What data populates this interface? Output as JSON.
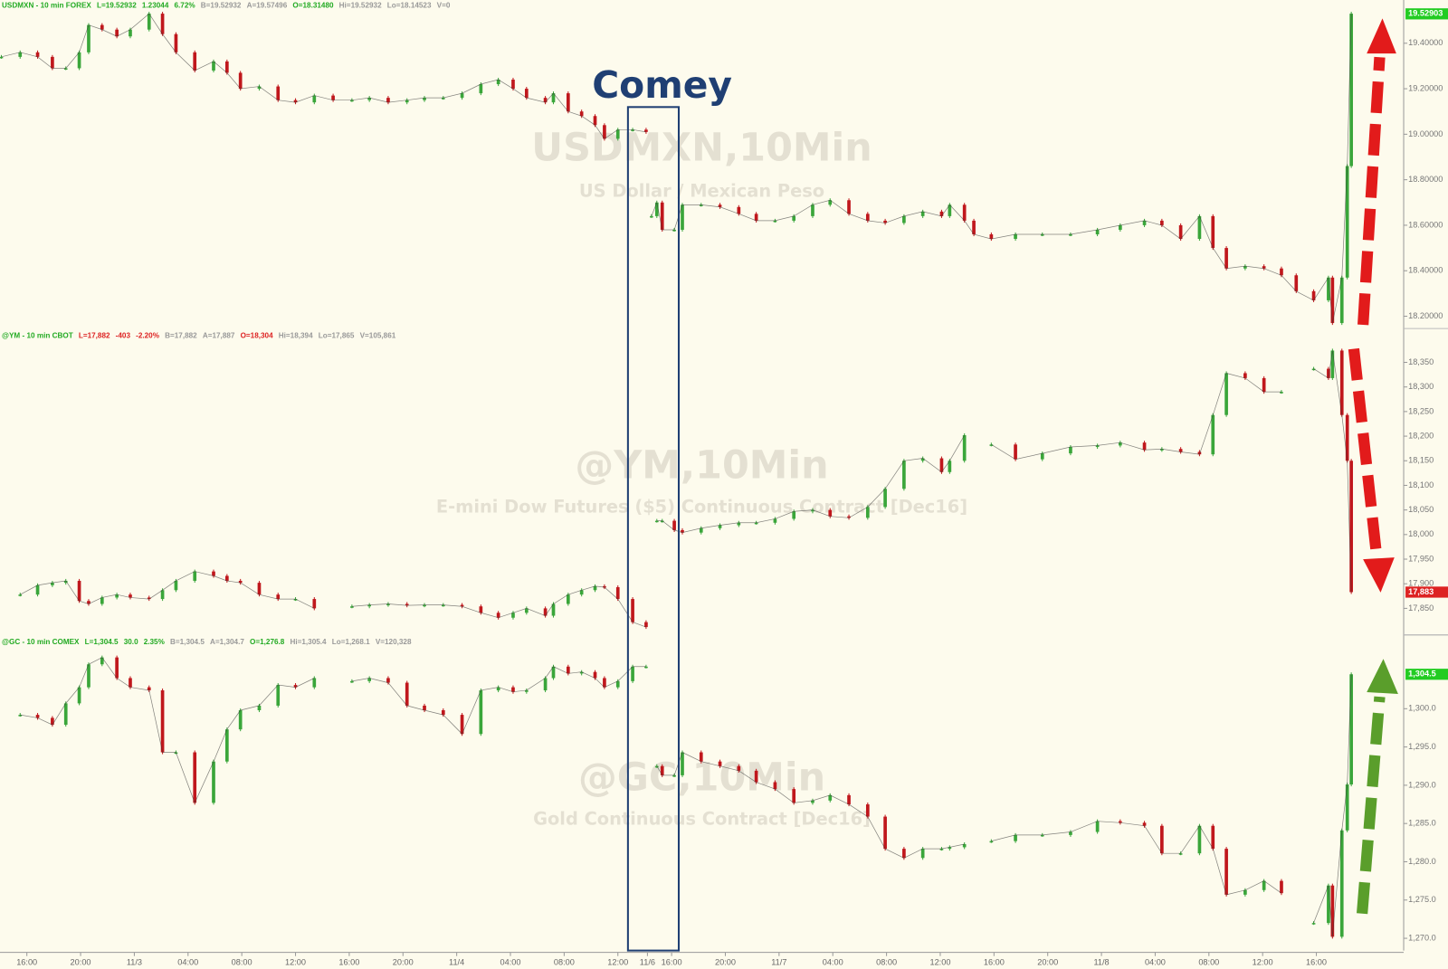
{
  "annotation": "Comey",
  "chart_data": [
    {
      "type": "line",
      "header": [
        {
          "text": "USDMXN - 10 min  FOREX",
          "color": "#22aa22"
        },
        {
          "text": "L=19.52932",
          "color": "#22aa22"
        },
        {
          "text": "1.23044",
          "color": "#22aa22"
        },
        {
          "text": "6.72%",
          "color": "#22aa22"
        },
        {
          "text": "B=19.52932",
          "color": "#999999"
        },
        {
          "text": "A=19.57496",
          "color": "#999999"
        },
        {
          "text": "O=18.31480",
          "color": "#22aa22"
        },
        {
          "text": "Hi=19.52932",
          "color": "#999999"
        },
        {
          "text": "Lo=18.14523",
          "color": "#999999"
        },
        {
          "text": "V=0",
          "color": "#999999"
        }
      ],
      "watermark_title": "USDMXN,10Min",
      "watermark_subtitle": "US Dollar / Mexican Peso",
      "up_color": "#3aa63a",
      "down_color": "#c0171c",
      "xlim": [
        -2,
        102.5
      ],
      "ylim": [
        18.15,
        19.59
      ],
      "yticks": [
        {
          "value": 19.4,
          "label": "19.40000"
        },
        {
          "value": 19.2,
          "label": "19.20000"
        },
        {
          "value": 19.0,
          "label": "19.00000"
        },
        {
          "value": 18.8,
          "label": "18.80000"
        },
        {
          "value": 18.6,
          "label": "18.60000"
        },
        {
          "value": 18.4,
          "label": "18.40000"
        },
        {
          "value": 18.2,
          "label": "18.20000"
        }
      ],
      "last_price": 19.52903,
      "last_price_color": "#22cc22",
      "x": [
        -1.9,
        -0.5,
        0.8,
        1.9,
        2.9,
        3.9,
        4.6,
        5.6,
        6.7,
        7.7,
        9.1,
        10.1,
        11.1,
        12.5,
        13.9,
        14.9,
        15.9,
        17.3,
        18.7,
        20.0,
        21.4,
        22.8,
        24.2,
        25.5,
        26.9,
        28.3,
        29.6,
        31.0,
        32.4,
        33.8,
        35.1,
        36.2,
        37.2,
        38.6,
        39.2,
        40.3,
        41.3,
        42.3,
        43.0,
        44.0,
        45.1,
        46.1,
        46.3,
        46.5,
        46.9,
        47.3,
        48.2,
        48.8,
        50.2,
        51.6,
        53.0,
        54.3,
        55.7,
        57.1,
        58.5,
        59.8,
        61.2,
        62.6,
        63.9,
        65.3,
        66.7,
        68.1,
        68.7,
        69.8,
        70.5,
        71.8,
        73.6,
        75.6,
        77.7,
        79.7,
        81.4,
        83.2,
        84.5,
        85.9,
        87.3,
        88.3,
        89.3,
        90.7,
        92.1,
        93.4,
        94.5,
        95.8,
        96.9,
        97.2,
        97.9,
        98.3,
        98.6
      ],
      "values": [
        19.34,
        19.36,
        19.34,
        19.29,
        19.29,
        19.36,
        19.48,
        19.46,
        19.43,
        19.46,
        19.53,
        19.44,
        19.36,
        19.28,
        19.32,
        19.27,
        19.2,
        19.21,
        19.15,
        19.14,
        19.17,
        19.15,
        19.15,
        19.16,
        19.14,
        19.15,
        19.16,
        19.16,
        19.18,
        19.22,
        19.24,
        19.2,
        19.16,
        19.14,
        19.18,
        19.1,
        19.08,
        19.04,
        18.98,
        19.02,
        19.02,
        19.01,
        null,
        18.64,
        18.7,
        18.58,
        18.58,
        18.69,
        18.69,
        18.68,
        18.65,
        18.62,
        18.62,
        18.64,
        18.69,
        18.71,
        18.65,
        18.62,
        18.61,
        18.64,
        18.66,
        18.64,
        18.69,
        18.62,
        18.56,
        18.54,
        18.56,
        18.56,
        18.56,
        18.58,
        18.6,
        18.62,
        18.6,
        18.54,
        18.64,
        18.5,
        18.41,
        18.42,
        18.41,
        18.38,
        18.31,
        18.27,
        18.37,
        18.17,
        18.37,
        18.86,
        19.53
      ]
    },
    {
      "type": "line",
      "header": [
        {
          "text": "@YM - 10 min  CBOT",
          "color": "#22aa22"
        },
        {
          "text": "L=17,882",
          "color": "#dd2222"
        },
        {
          "text": "-403",
          "color": "#dd2222"
        },
        {
          "text": "-2.20%",
          "color": "#dd2222"
        },
        {
          "text": "B=17,882",
          "color": "#999999"
        },
        {
          "text": "A=17,887",
          "color": "#999999"
        },
        {
          "text": "O=18,304",
          "color": "#dd2222"
        },
        {
          "text": "Hi=18,394",
          "color": "#999999"
        },
        {
          "text": "Lo=17,865",
          "color": "#999999"
        },
        {
          "text": "V=105,861",
          "color": "#999999"
        }
      ],
      "watermark_title": "@YM,10Min",
      "watermark_subtitle": "E-mini Dow Futures ($5) Continuous Contract [Dec16]",
      "up_color": "#3aa63a",
      "down_color": "#c0171c",
      "xlim": [
        -2,
        102.5
      ],
      "ylim": [
        17796,
        18415
      ],
      "yticks": [
        {
          "value": 18350,
          "label": "18,350"
        },
        {
          "value": 18300,
          "label": "18,300"
        },
        {
          "value": 18250,
          "label": "18,250"
        },
        {
          "value": 18200,
          "label": "18,200"
        },
        {
          "value": 18150,
          "label": "18,150"
        },
        {
          "value": 18100,
          "label": "18,100"
        },
        {
          "value": 18050,
          "label": "18,050"
        },
        {
          "value": 18000,
          "label": "18,000"
        },
        {
          "value": 17950,
          "label": "17,950"
        },
        {
          "value": 17900,
          "label": "17,900"
        },
        {
          "value": 17850,
          "label": "17,850"
        }
      ],
      "last_price": {
        "value": 17883,
        "label": "17,883"
      },
      "last_price_color": "#dd2222",
      "x": [
        -1.9,
        -0.5,
        0.8,
        1.9,
        2.9,
        3.9,
        4.6,
        5.6,
        6.7,
        7.7,
        9.1,
        10.1,
        11.1,
        12.5,
        13.9,
        14.9,
        15.9,
        17.3,
        18.7,
        20.0,
        21.4,
        22.8,
        24.2,
        25.5,
        26.9,
        28.3,
        29.6,
        31.0,
        32.4,
        33.8,
        35.1,
        36.2,
        37.2,
        38.6,
        39.2,
        40.3,
        41.3,
        42.3,
        43.0,
        44.0,
        45.1,
        46.1,
        46.3,
        46.5,
        46.9,
        47.3,
        48.2,
        48.8,
        50.2,
        51.6,
        53.0,
        54.3,
        55.7,
        57.1,
        58.5,
        59.8,
        61.2,
        62.6,
        63.9,
        65.3,
        66.7,
        68.1,
        68.7,
        69.8,
        70.5,
        71.8,
        73.6,
        75.6,
        77.7,
        79.7,
        81.4,
        83.2,
        84.5,
        85.9,
        87.3,
        88.3,
        89.3,
        90.7,
        92.1,
        93.4,
        94.5,
        95.8,
        96.9,
        97.2,
        97.9,
        98.3,
        98.6
      ],
      "values": [
        null,
        17878,
        17897,
        17902,
        17906,
        17865,
        17859,
        17872,
        17878,
        17872,
        17869,
        17887,
        17906,
        17925,
        17916,
        17906,
        17902,
        17878,
        17869,
        17869,
        17850,
        null,
        17854,
        17857,
        17859,
        17856,
        17857,
        17857,
        17854,
        17841,
        17831,
        17841,
        17850,
        17835,
        17859,
        17878,
        17887,
        17895,
        17893,
        17869,
        17822,
        17812,
        null,
        null,
        18028,
        18028,
        18009,
        18004,
        18013,
        18019,
        18024,
        18024,
        18032,
        18047,
        18050,
        18037,
        18034,
        18056,
        18093,
        18150,
        18155,
        18127,
        18150,
        18202,
        null,
        18183,
        18153,
        18165,
        18178,
        18181,
        18187,
        18172,
        18174,
        18168,
        18163,
        18243,
        18328,
        18318,
        18290,
        18290,
        null,
        18337,
        18318,
        18374,
        18243,
        18150,
        17883
      ]
    },
    {
      "type": "line",
      "header": [
        {
          "text": "@GC - 10 min  COMEX",
          "color": "#22aa22"
        },
        {
          "text": "L=1,304.5",
          "color": "#22aa22"
        },
        {
          "text": "30.0",
          "color": "#22aa22"
        },
        {
          "text": "2.35%",
          "color": "#22aa22"
        },
        {
          "text": "B=1,304.5",
          "color": "#999999"
        },
        {
          "text": "A=1,304.7",
          "color": "#999999"
        },
        {
          "text": "O=1,276.8",
          "color": "#22aa22"
        },
        {
          "text": "Hi=1,305.4",
          "color": "#999999"
        },
        {
          "text": "Lo=1,268.1",
          "color": "#999999"
        },
        {
          "text": "V=120,328",
          "color": "#999999"
        }
      ],
      "watermark_title": "@GC,10Min",
      "watermark_subtitle": "Gold Continuous Contract [Dec16]",
      "up_color": "#3aa63a",
      "down_color": "#c0171c",
      "xlim": [
        -2,
        102.5
      ],
      "ylim": [
        1268.4,
        1309.4
      ],
      "yticks": [
        {
          "value": 1300,
          "label": "1,300.0"
        },
        {
          "value": 1295,
          "label": "1,295.0"
        },
        {
          "value": 1290,
          "label": "1,290.0"
        },
        {
          "value": 1285,
          "label": "1,285.0"
        },
        {
          "value": 1280,
          "label": "1,280.0"
        },
        {
          "value": 1275,
          "label": "1,275.0"
        },
        {
          "value": 1270,
          "label": "1,270.0"
        }
      ],
      "last_price": {
        "value": 1304.5,
        "label": "1,304.5"
      },
      "last_price_color": "#22cc22",
      "xticks": [
        {
          "value": 0,
          "label": "16:00"
        },
        {
          "value": 4,
          "label": "20:00"
        },
        {
          "value": 8,
          "label": "11/3"
        },
        {
          "value": 12,
          "label": "04:00"
        },
        {
          "value": 16,
          "label": "08:00"
        },
        {
          "value": 20,
          "label": "12:00"
        },
        {
          "value": 24,
          "label": "16:00"
        },
        {
          "value": 28,
          "label": "20:00"
        },
        {
          "value": 32,
          "label": "11/4"
        },
        {
          "value": 36,
          "label": "04:00"
        },
        {
          "value": 40,
          "label": "08:00"
        },
        {
          "value": 44,
          "label": "12:00"
        },
        {
          "value": 46.2,
          "label": "11/6"
        },
        {
          "value": 48,
          "label": "16:00"
        },
        {
          "value": 52,
          "label": "20:00"
        },
        {
          "value": 56,
          "label": "11/7"
        },
        {
          "value": 60,
          "label": "04:00"
        },
        {
          "value": 64,
          "label": "08:00"
        },
        {
          "value": 68,
          "label": "12:00"
        },
        {
          "value": 72,
          "label": "16:00"
        },
        {
          "value": 76,
          "label": "20:00"
        },
        {
          "value": 80,
          "label": "11/8"
        },
        {
          "value": 84,
          "label": "04:00"
        },
        {
          "value": 88,
          "label": "08:00"
        },
        {
          "value": 92,
          "label": "12:00"
        },
        {
          "value": 96,
          "label": "16:00"
        }
      ],
      "x": [
        -1.9,
        -0.5,
        0.8,
        1.9,
        2.9,
        3.9,
        4.6,
        5.6,
        6.7,
        7.7,
        9.1,
        10.1,
        11.1,
        12.5,
        13.9,
        14.9,
        15.9,
        17.3,
        18.7,
        20.0,
        21.4,
        22.8,
        24.2,
        25.5,
        26.9,
        28.3,
        29.6,
        31.0,
        32.4,
        33.8,
        35.1,
        36.2,
        37.2,
        38.6,
        39.2,
        40.3,
        41.3,
        42.3,
        43.0,
        44.0,
        45.1,
        46.1,
        46.3,
        46.5,
        46.9,
        47.3,
        48.2,
        48.8,
        50.2,
        51.6,
        53.0,
        54.3,
        55.7,
        57.1,
        58.5,
        59.8,
        61.2,
        62.6,
        63.9,
        65.3,
        66.7,
        68.1,
        68.7,
        69.8,
        70.5,
        71.8,
        73.6,
        75.6,
        77.7,
        79.7,
        81.4,
        83.2,
        84.5,
        85.9,
        87.3,
        88.3,
        89.3,
        90.7,
        92.1,
        93.4,
        94.5,
        95.8,
        96.9,
        97.2,
        97.9,
        98.3,
        98.6
      ],
      "values": [
        null,
        1299.2,
        1298.8,
        1297.9,
        1300.7,
        1302.8,
        1305.8,
        1306.7,
        1304.0,
        1302.8,
        1302.4,
        1294.3,
        1294.3,
        1287.7,
        1293.1,
        1297.3,
        1299.8,
        1300.4,
        1303.1,
        1302.8,
        1304.0,
        null,
        1303.6,
        1304.0,
        1303.4,
        1300.4,
        1299.8,
        1299.2,
        1296.7,
        1302.4,
        1302.8,
        1302.2,
        1302.4,
        1304.0,
        1305.5,
        1304.6,
        1304.8,
        1304.0,
        1302.8,
        1303.6,
        1305.5,
        1305.5,
        null,
        null,
        1292.5,
        1291.3,
        1291.3,
        1294.3,
        1293.1,
        1292.5,
        1291.9,
        1290.4,
        1289.5,
        1287.7,
        1288.0,
        1288.7,
        1287.5,
        1285.9,
        1281.7,
        1280.5,
        1281.7,
        1281.7,
        1281.9,
        1282.3,
        null,
        1282.7,
        1283.5,
        1283.5,
        1283.9,
        1285.3,
        1285.1,
        1284.7,
        1281.1,
        1281.1,
        1284.7,
        1281.7,
        1275.7,
        1276.3,
        1277.5,
        1275.9,
        null,
        1272.0,
        1276.9,
        1270.2,
        1284.1,
        1290.1,
        1304.5
      ]
    }
  ]
}
